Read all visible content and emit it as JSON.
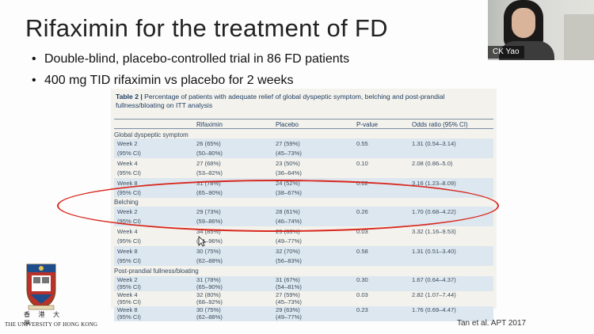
{
  "slide": {
    "title": "Rifaximin for the treatment of FD",
    "bullets": [
      "Double-blind, placebo-controlled trial in 86 FD patients",
      "400 mg TID rifaximin vs placebo for 2 weeks"
    ],
    "citation": "Tan et al. APT 2017"
  },
  "video": {
    "participant_name": "CK Yao"
  },
  "logo": {
    "chinese": "香 港 大 學",
    "english": "THE UNIVERSITY OF HONG KONG"
  },
  "table": {
    "caption_bold": "Table 2 |",
    "caption": " Percentage of patients with adequate relief of global dyspeptic symptom, belching and post-prandial fullness/bloating on ITT analysis",
    "columns": [
      "Rifaximin",
      "Placebo",
      "P-value",
      "Odds ratio (95% CI)"
    ],
    "sections": [
      {
        "name": "Global dyspeptic symptom",
        "rows": [
          {
            "week": "Week 2",
            "ci": "(95% CI)",
            "rif": "26 (65%)",
            "rif_ci": "(50–80%)",
            "pla": "27 (59%)",
            "pla_ci": "(45–73%)",
            "p": "0.55",
            "or": "1.31 (0.54–3.14)"
          },
          {
            "week": "Week 4",
            "ci": "(95% CI)",
            "rif": "27 (68%)",
            "rif_ci": "(53–82%)",
            "pla": "23 (50%)",
            "pla_ci": "(36–64%)",
            "p": "0.10",
            "or": "2.08 (0.86–5.0)"
          },
          {
            "week": "Week 8",
            "ci": "(95% CI)",
            "rif": "31 (78%)",
            "rif_ci": "(65–90%)",
            "pla": "24 (52%)",
            "pla_ci": "(38–67%)",
            "p": "0.02",
            "or": "3.16 (1.23–8.09)"
          }
        ]
      },
      {
        "name": "Belching",
        "rows": [
          {
            "week": "Week 2",
            "ci": "(95% CI)",
            "rif": "29 (73%)",
            "rif_ci": "(59–86%)",
            "pla": "28 (61%)",
            "pla_ci": "(46–74%)",
            "p": "0.26",
            "or": "1.70 (0.68–4.22)"
          },
          {
            "week": "Week 4",
            "ci": "(95% CI)",
            "rif": "34 (85%)",
            "rif_ci": "(74–96%)",
            "pla": "29 (63%)",
            "pla_ci": "(49–77%)",
            "p": "0.03",
            "or": "3.32 (1.16–9.53)"
          },
          {
            "week": "Week 8",
            "ci": "(95% CI)",
            "rif": "30 (75%)",
            "rif_ci": "(62–88%)",
            "pla": "32 (70%)",
            "pla_ci": "(56–83%)",
            "p": "0.58",
            "or": "1.31 (0.51–3.40)"
          }
        ]
      },
      {
        "name": "Post-prandial fullness/bloating",
        "rows": [
          {
            "week": "Week 2",
            "ci": "(95% CI)",
            "rif": "31 (78%)",
            "rif_ci": "(65–90%)",
            "pla": "31 (67%)",
            "pla_ci": "(54–81%)",
            "p": "0.30",
            "or": "1.67 (0.64–4.37)"
          },
          {
            "week": "Week 4",
            "ci": "(95% CI)",
            "rif": "32 (80%)",
            "rif_ci": "(68–92%)",
            "pla": "27 (59%)",
            "pla_ci": "(45–73%)",
            "p": "0.03",
            "or": "2.82 (1.07–7.44)"
          },
          {
            "week": "Week 8",
            "ci": "(95% CI)",
            "rif": "30 (75%)",
            "rif_ci": "(62–88%)",
            "pla": "29 (63%)",
            "pla_ci": "(49–77%)",
            "p": "0.23",
            "or": "1.76 (0.69–4.47)"
          }
        ]
      }
    ]
  },
  "colors": {
    "annotation_circle": "#d8281e",
    "table_bg": "#f4f2ec",
    "row_shade": "#dde7ef",
    "table_text": "#1d3d63"
  }
}
